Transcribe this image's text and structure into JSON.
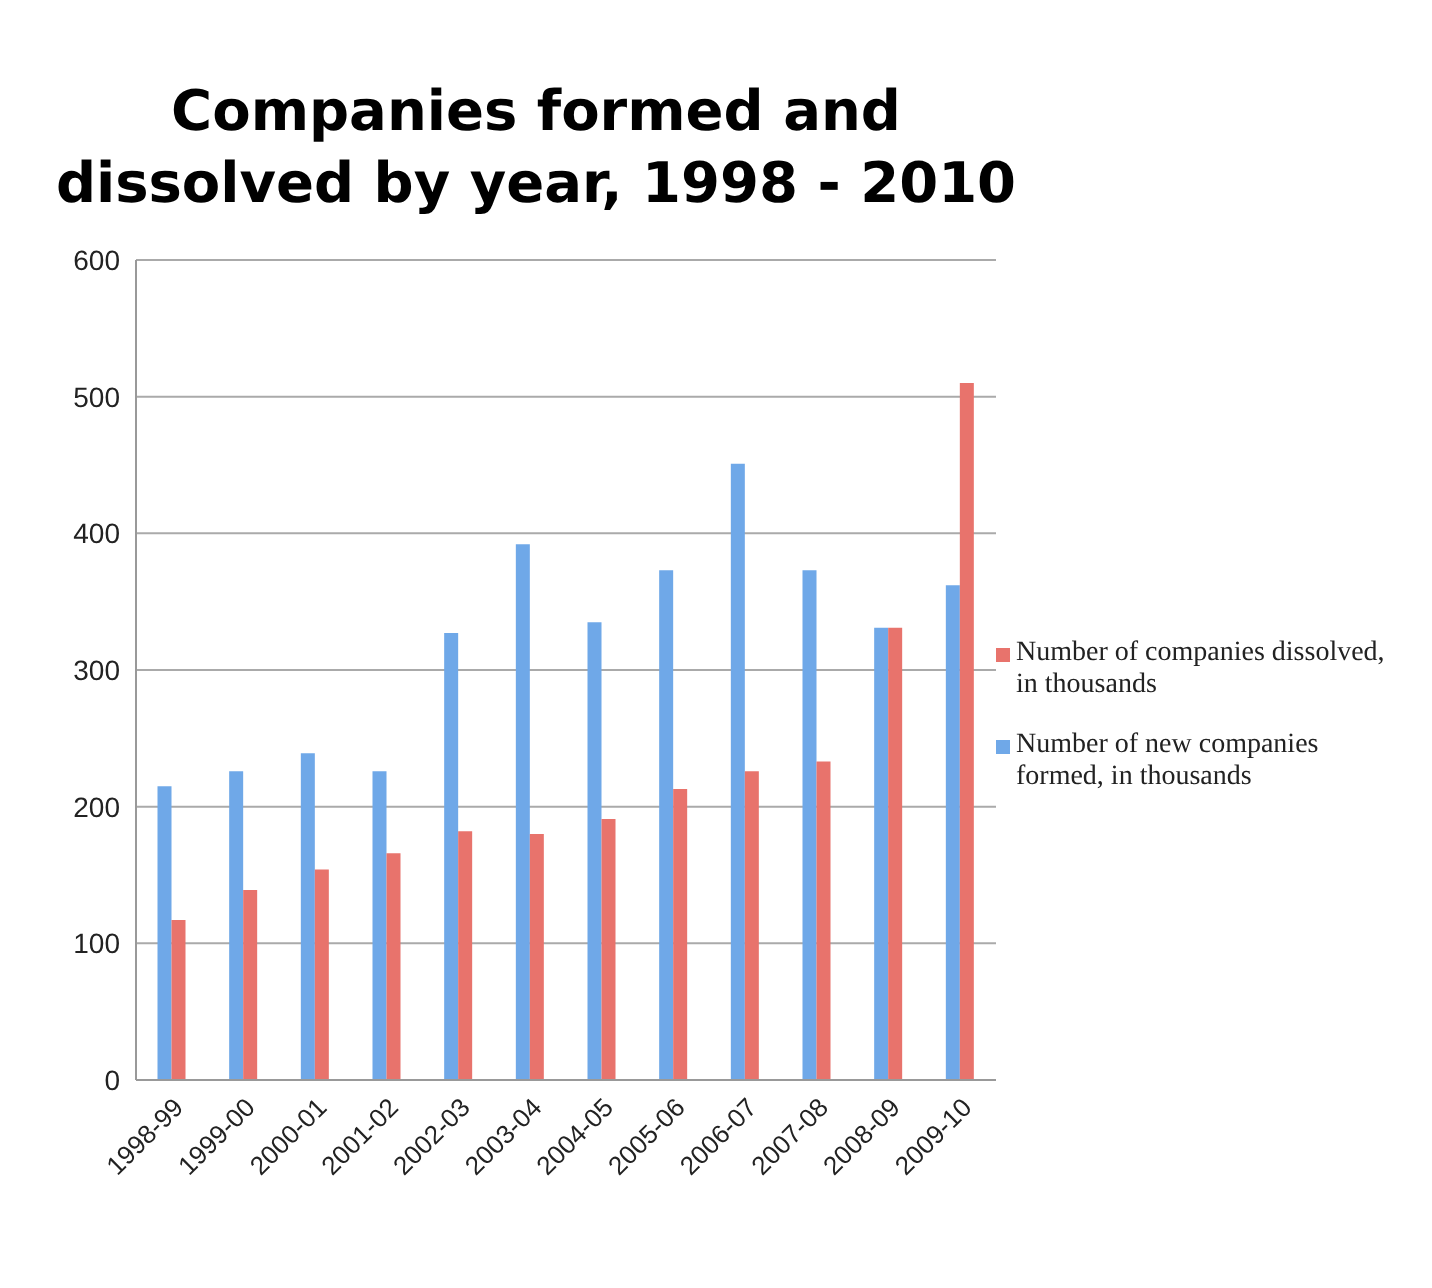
{
  "chart_data": {
    "type": "bar",
    "title": "Companies formed and dissolved by year, 1998 - 2010",
    "categories": [
      "1998-99",
      "1999-00",
      "2000-01",
      "2001-02",
      "2002-03",
      "2003-04",
      "2004-05",
      "2005-06",
      "2006-07",
      "2007-08",
      "2008-09",
      "2009-10"
    ],
    "series": [
      {
        "name": "Number of new companies formed, in thousands",
        "color": "#6fa8e8",
        "values": [
          215,
          226,
          239,
          226,
          327,
          392,
          335,
          373,
          451,
          373,
          331,
          362
        ]
      },
      {
        "name": "Number of companies dissolved, in thousands",
        "color": "#e8736c",
        "values": [
          117,
          139,
          154,
          166,
          182,
          180,
          191,
          213,
          226,
          233,
          331,
          510
        ]
      }
    ],
    "ylim": [
      0,
      600
    ],
    "yticks": [
      0,
      100,
      200,
      300,
      400,
      500,
      600
    ],
    "grid": "y",
    "legend": "right"
  }
}
